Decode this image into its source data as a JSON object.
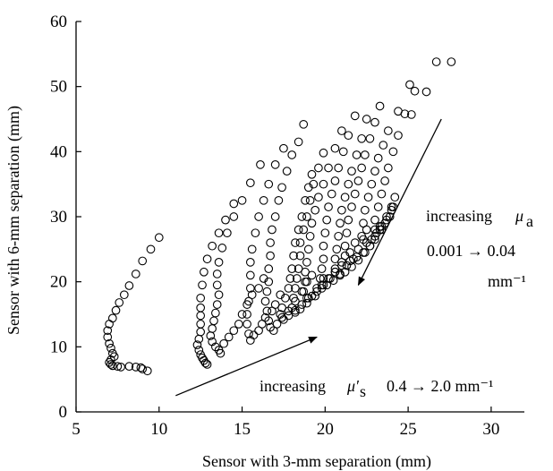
{
  "chart_data": {
    "type": "scatter",
    "xlabel": "Sensor with 3-mm separation (mm)",
    "ylabel": "Sensor with 6-mm separation (mm)",
    "xlim": [
      5,
      32
    ],
    "ylim": [
      0,
      60
    ],
    "xticks": [
      "5",
      "10",
      "15",
      "20",
      "25",
      "30"
    ],
    "yticks": [
      "0",
      "10",
      "20",
      "30",
      "40",
      "50",
      "60"
    ],
    "grid": false,
    "marker": "open-circle",
    "annotations": {
      "mua_prefix": "increasing",
      "mua_symbol": "μ",
      "mua_sub": "a",
      "mua_range": "0.001 → 0.04",
      "mua_unit": "mm⁻¹",
      "mus_prefix": "increasing",
      "mus_symbol": "μ′",
      "mus_sub": "s",
      "mus_range": "0.4 → 2.0 mm⁻¹"
    },
    "arrows": [
      {
        "from": [
          27,
          45
        ],
        "to": [
          22,
          19.5
        ]
      },
      {
        "from": [
          11,
          2.5
        ],
        "to": [
          19.5,
          11.5
        ]
      }
    ],
    "series": [
      {
        "points": [
          [
            10.0,
            26.8
          ],
          [
            9.5,
            25.0
          ],
          [
            9.0,
            23.2
          ],
          [
            8.6,
            21.2
          ],
          [
            8.2,
            19.4
          ],
          [
            7.9,
            18.0
          ],
          [
            7.6,
            16.8
          ],
          [
            7.4,
            15.6
          ],
          [
            7.2,
            14.4
          ],
          [
            7.0,
            13.5
          ],
          [
            6.9,
            12.5
          ],
          [
            6.9,
            11.5
          ],
          [
            7.0,
            10.5
          ],
          [
            7.1,
            9.8
          ],
          [
            7.2,
            9.0
          ],
          [
            7.3,
            8.5
          ],
          [
            7.1,
            8.0
          ],
          [
            7.0,
            7.6
          ],
          [
            7.1,
            7.3
          ],
          [
            7.2,
            7.1
          ],
          [
            7.5,
            7.0
          ],
          [
            7.7,
            6.9
          ],
          [
            8.2,
            7.0
          ],
          [
            8.6,
            6.9
          ],
          [
            8.9,
            6.8
          ],
          [
            9.0,
            6.6
          ],
          [
            9.3,
            6.3
          ]
        ]
      },
      {
        "points": [
          [
            14.5,
            32.0
          ],
          [
            14.0,
            29.5
          ],
          [
            13.6,
            27.5
          ],
          [
            13.2,
            25.5
          ],
          [
            12.9,
            23.5
          ],
          [
            12.7,
            21.5
          ],
          [
            12.6,
            19.5
          ],
          [
            12.5,
            17.5
          ],
          [
            12.5,
            16.0
          ],
          [
            12.5,
            14.8
          ],
          [
            12.5,
            13.5
          ],
          [
            12.5,
            12.3
          ],
          [
            12.4,
            11.2
          ],
          [
            12.3,
            10.3
          ],
          [
            12.4,
            9.5
          ],
          [
            12.5,
            8.8
          ],
          [
            12.6,
            8.3
          ],
          [
            12.7,
            7.9
          ],
          [
            12.8,
            7.5
          ],
          [
            12.9,
            7.3
          ]
        ]
      },
      {
        "points": [
          [
            16.1,
            38.0
          ],
          [
            15.5,
            35.2
          ],
          [
            15.0,
            32.5
          ],
          [
            14.5,
            30.0
          ],
          [
            14.1,
            27.5
          ],
          [
            13.8,
            25.2
          ],
          [
            13.6,
            23.0
          ],
          [
            13.5,
            21.2
          ],
          [
            13.5,
            19.5
          ],
          [
            13.6,
            18.0
          ],
          [
            13.5,
            16.5
          ],
          [
            13.4,
            15.2
          ],
          [
            13.3,
            14.0
          ],
          [
            13.2,
            12.8
          ],
          [
            13.1,
            11.7
          ],
          [
            13.2,
            10.8
          ],
          [
            13.4,
            10.0
          ],
          [
            13.6,
            9.5
          ],
          [
            13.7,
            9.0
          ],
          [
            13.9,
            10.5
          ],
          [
            14.2,
            11.5
          ],
          [
            14.5,
            12.5
          ],
          [
            14.8,
            13.5
          ],
          [
            15.0,
            15.0
          ],
          [
            15.3,
            16.5
          ],
          [
            15.6,
            18.0
          ],
          [
            16.0,
            19.0
          ],
          [
            16.3,
            20.5
          ]
        ]
      },
      {
        "points": [
          [
            17.5,
            40.5
          ],
          [
            17.0,
            38.0
          ],
          [
            16.6,
            35.0
          ],
          [
            16.3,
            32.5
          ],
          [
            16.0,
            30.0
          ],
          [
            15.8,
            27.5
          ],
          [
            15.6,
            25.0
          ],
          [
            15.5,
            23.0
          ],
          [
            15.5,
            21.0
          ],
          [
            15.5,
            19.0
          ],
          [
            15.4,
            17.0
          ],
          [
            15.3,
            15.0
          ],
          [
            15.3,
            13.5
          ],
          [
            15.4,
            12.0
          ],
          [
            15.5,
            11.0
          ],
          [
            15.7,
            11.8
          ],
          [
            16.0,
            12.5
          ],
          [
            16.2,
            13.5
          ],
          [
            16.4,
            14.5
          ],
          [
            16.8,
            15.5
          ],
          [
            17.0,
            16.5
          ],
          [
            17.3,
            18.0
          ]
        ]
      },
      {
        "points": [
          [
            18.7,
            44.2
          ],
          [
            18.4,
            41.5
          ],
          [
            18.0,
            39.5
          ],
          [
            17.7,
            37.0
          ],
          [
            17.4,
            34.5
          ],
          [
            17.2,
            32.5
          ],
          [
            17.0,
            30.0
          ],
          [
            16.8,
            28.0
          ],
          [
            16.7,
            26.0
          ],
          [
            16.7,
            24.0
          ],
          [
            16.6,
            22.0
          ],
          [
            16.6,
            20.0
          ],
          [
            16.5,
            18.5
          ],
          [
            16.4,
            17.0
          ],
          [
            16.5,
            15.5
          ],
          [
            16.6,
            14.0
          ],
          [
            16.7,
            13.0
          ],
          [
            16.9,
            12.5
          ],
          [
            17.1,
            13.5
          ],
          [
            17.4,
            14.5
          ],
          [
            17.8,
            15.5
          ],
          [
            18.2,
            17.0
          ],
          [
            18.6,
            18.5
          ],
          [
            18.9,
            20.0
          ],
          [
            19.2,
            21.0
          ]
        ]
      },
      {
        "points": [
          [
            19.2,
            36.5
          ],
          [
            19.0,
            34.5
          ],
          [
            18.8,
            32.5
          ],
          [
            18.6,
            30.0
          ],
          [
            18.4,
            28.0
          ],
          [
            18.2,
            26.0
          ],
          [
            18.1,
            24.0
          ],
          [
            18.0,
            22.0
          ],
          [
            17.9,
            20.5
          ],
          [
            17.8,
            19.0
          ],
          [
            17.6,
            17.5
          ],
          [
            17.4,
            16.0
          ],
          [
            17.3,
            15.0
          ],
          [
            17.5,
            14.2
          ],
          [
            17.8,
            14.8
          ],
          [
            18.2,
            15.6
          ],
          [
            18.6,
            16.5
          ],
          [
            19.0,
            17.5
          ],
          [
            19.5,
            19.0
          ],
          [
            19.9,
            20.5
          ]
        ]
      },
      {
        "points": [
          [
            19.9,
            39.8
          ],
          [
            19.6,
            37.5
          ],
          [
            19.3,
            35.0
          ],
          [
            19.1,
            32.5
          ],
          [
            18.9,
            30.0
          ],
          [
            18.7,
            28.0
          ],
          [
            18.5,
            26.0
          ],
          [
            18.5,
            24.0
          ],
          [
            18.4,
            22.0
          ],
          [
            18.3,
            20.5
          ],
          [
            18.2,
            19.0
          ],
          [
            18.1,
            17.5
          ],
          [
            18.0,
            16.0
          ],
          [
            18.2,
            15.3
          ],
          [
            18.5,
            15.8
          ],
          [
            18.9,
            16.7
          ],
          [
            19.4,
            17.8
          ],
          [
            19.8,
            19.0
          ],
          [
            20.2,
            20.5
          ],
          [
            20.6,
            21.5
          ],
          [
            21.0,
            22.5
          ]
        ]
      },
      {
        "points": [
          [
            21.0,
            43.2
          ],
          [
            20.6,
            40.5
          ],
          [
            20.2,
            37.5
          ],
          [
            19.9,
            35.0
          ],
          [
            19.6,
            33.0
          ],
          [
            19.4,
            31.0
          ],
          [
            19.2,
            29.0
          ],
          [
            19.1,
            27.0
          ],
          [
            19.0,
            25.0
          ],
          [
            18.9,
            23.0
          ],
          [
            18.8,
            21.5
          ],
          [
            18.8,
            20.0
          ],
          [
            18.7,
            18.5
          ],
          [
            18.9,
            17.5
          ],
          [
            19.2,
            17.8
          ],
          [
            19.5,
            18.5
          ],
          [
            19.9,
            19.5
          ],
          [
            20.3,
            20.5
          ],
          [
            20.6,
            21.5
          ],
          [
            21.0,
            23.0
          ],
          [
            21.5,
            24.5
          ],
          [
            21.8,
            26.0
          ]
        ]
      },
      {
        "points": [
          [
            21.8,
            45.5
          ],
          [
            21.4,
            42.5
          ],
          [
            21.1,
            40.0
          ],
          [
            20.8,
            37.5
          ],
          [
            20.6,
            35.5
          ],
          [
            20.4,
            33.5
          ],
          [
            20.2,
            31.5
          ],
          [
            20.1,
            29.5
          ],
          [
            20.0,
            27.5
          ],
          [
            19.9,
            25.5
          ],
          [
            19.9,
            23.5
          ],
          [
            19.8,
            22.0
          ],
          [
            19.7,
            20.5
          ],
          [
            19.8,
            19.5
          ],
          [
            20.1,
            19.5
          ],
          [
            20.5,
            20.2
          ],
          [
            20.9,
            21.2
          ],
          [
            21.3,
            22.5
          ],
          [
            21.7,
            23.5
          ],
          [
            22.0,
            25.0
          ],
          [
            22.3,
            26.5
          ],
          [
            22.5,
            28.0
          ]
        ]
      },
      {
        "points": [
          [
            22.5,
            45.0
          ],
          [
            22.2,
            42.0
          ],
          [
            21.9,
            39.5
          ],
          [
            21.6,
            37.0
          ],
          [
            21.4,
            35.0
          ],
          [
            21.2,
            33.0
          ],
          [
            21.0,
            31.0
          ],
          [
            20.9,
            29.0
          ],
          [
            20.8,
            27.0
          ],
          [
            20.7,
            25.0
          ],
          [
            20.6,
            23.5
          ],
          [
            20.6,
            22.0
          ],
          [
            20.9,
            21.0
          ],
          [
            21.2,
            21.5
          ],
          [
            21.6,
            22.3
          ],
          [
            22.0,
            23.3
          ],
          [
            22.4,
            24.5
          ],
          [
            22.7,
            25.5
          ],
          [
            23.0,
            27.0
          ],
          [
            23.3,
            28.5
          ]
        ]
      },
      {
        "points": [
          [
            23.3,
            47.0
          ],
          [
            23.0,
            44.5
          ],
          [
            22.7,
            42.0
          ],
          [
            22.4,
            39.5
          ],
          [
            22.2,
            37.5
          ],
          [
            22.0,
            35.5
          ],
          [
            21.8,
            33.5
          ],
          [
            21.6,
            31.5
          ],
          [
            21.4,
            29.5
          ],
          [
            21.3,
            27.5
          ],
          [
            21.2,
            25.5
          ],
          [
            21.2,
            24.0
          ],
          [
            21.5,
            23.2
          ],
          [
            21.9,
            23.8
          ],
          [
            22.3,
            24.5
          ],
          [
            22.7,
            25.5
          ],
          [
            23.0,
            26.5
          ],
          [
            23.4,
            28.0
          ],
          [
            23.7,
            29.5
          ],
          [
            24.0,
            31.0
          ]
        ]
      },
      {
        "points": [
          [
            23.8,
            43.2
          ],
          [
            23.5,
            41.0
          ],
          [
            23.2,
            39.0
          ],
          [
            23.0,
            37.0
          ],
          [
            22.8,
            35.0
          ],
          [
            22.6,
            33.0
          ],
          [
            22.4,
            31.0
          ],
          [
            22.3,
            29.0
          ],
          [
            22.2,
            27.0
          ],
          [
            22.5,
            26.0
          ],
          [
            22.8,
            26.5
          ],
          [
            23.1,
            27.5
          ],
          [
            23.4,
            28.5
          ],
          [
            23.7,
            30.0
          ],
          [
            24.0,
            31.5
          ],
          [
            24.2,
            33.0
          ]
        ]
      },
      {
        "points": [
          [
            24.4,
            42.5
          ],
          [
            24.1,
            40.0
          ],
          [
            23.8,
            37.5
          ],
          [
            23.6,
            35.5
          ],
          [
            23.4,
            33.5
          ],
          [
            23.2,
            31.5
          ],
          [
            23.0,
            29.5
          ],
          [
            23.0,
            28.0
          ],
          [
            23.3,
            28.0
          ],
          [
            23.6,
            29.0
          ],
          [
            23.9,
            30.0
          ],
          [
            24.1,
            31.5
          ]
        ]
      },
      {
        "points": [
          [
            24.4,
            46.2
          ],
          [
            24.8,
            45.8
          ],
          [
            25.2,
            45.7
          ],
          [
            25.1,
            50.3
          ],
          [
            25.4,
            49.3
          ],
          [
            26.1,
            49.2
          ],
          [
            26.7,
            53.8
          ],
          [
            27.6,
            53.8
          ]
        ]
      }
    ]
  }
}
